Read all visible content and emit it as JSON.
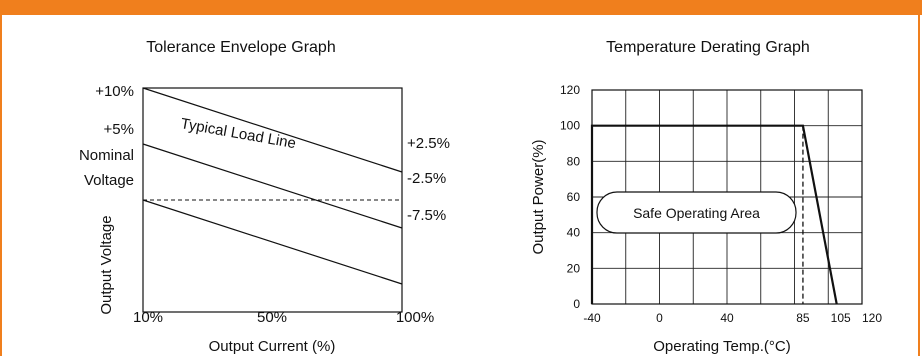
{
  "colors": {
    "accent": "#f07f1d",
    "line": "#111111"
  },
  "chart_data": [
    {
      "type": "line",
      "title": "Tolerance Envelope Graph",
      "xlabel": "Output Current (%)",
      "ylabel": "Output Voltage",
      "x_tick_labels": [
        "10%",
        "50%",
        "100%"
      ],
      "y_left_labels": [
        "+10%",
        "+5%",
        "Nominal",
        "Voltage"
      ],
      "y_right_labels": [
        "+2.5%",
        "-2.5%",
        "-7.5%"
      ],
      "annotation": "Typical Load Line",
      "xlim": [
        10,
        100
      ],
      "ylim": [
        -10,
        10
      ],
      "series": [
        {
          "x": [
            10,
            100
          ],
          "y": [
            10,
            2.5
          ]
        },
        {
          "x": [
            10,
            100
          ],
          "y": [
            5,
            -2.5
          ]
        },
        {
          "x": [
            10,
            100
          ],
          "y": [
            0,
            -7.5
          ]
        }
      ],
      "reference_line": {
        "y": 0,
        "style": "dashed"
      },
      "grid": false
    },
    {
      "type": "line",
      "title": "Temperature Derating Graph",
      "xlabel": "Operating Temp.(°C)",
      "ylabel": "Output Power(%)",
      "x_ticks": [
        -40,
        0,
        40,
        85,
        105,
        120
      ],
      "y_ticks": [
        0,
        20,
        40,
        60,
        80,
        100,
        120
      ],
      "xlim": [
        -40,
        120
      ],
      "ylim": [
        0,
        120
      ],
      "annotation": "Safe Operating Area",
      "series": [
        {
          "x": [
            -40,
            -40,
            85,
            105
          ],
          "y": [
            0,
            100,
            100,
            0
          ]
        }
      ],
      "reference_line": {
        "x": 85,
        "style": "dashed"
      },
      "grid": true
    }
  ]
}
